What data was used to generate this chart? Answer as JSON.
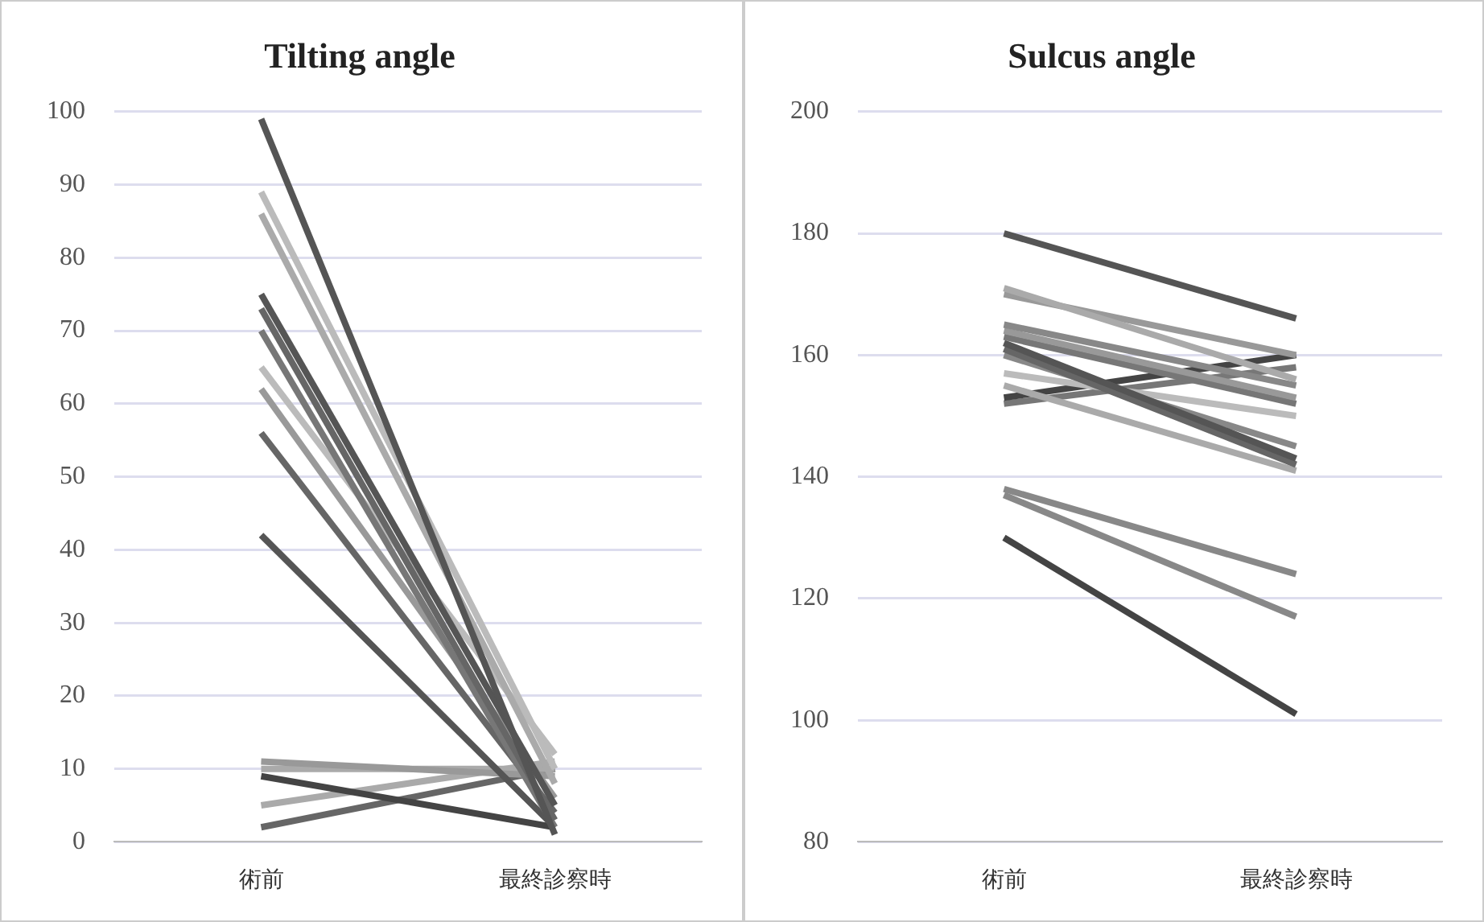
{
  "chart_data": [
    {
      "type": "line",
      "title": "Tilting angle",
      "categories": [
        "術前",
        "最終診察時"
      ],
      "ylim": [
        0,
        100
      ],
      "yticks": [
        0,
        10,
        20,
        30,
        40,
        50,
        60,
        70,
        80,
        90,
        100
      ],
      "grid": "y",
      "legend": false,
      "marker": "none",
      "series": [
        {
          "color": "#555555",
          "values": [
            99,
            1
          ]
        },
        {
          "color": "#bbbbbb",
          "values": [
            89,
            10
          ]
        },
        {
          "color": "#aaaaaa",
          "values": [
            86,
            8
          ]
        },
        {
          "color": "#555555",
          "values": [
            75,
            5
          ]
        },
        {
          "color": "#666666",
          "values": [
            73,
            3
          ]
        },
        {
          "color": "#777777",
          "values": [
            70,
            2
          ]
        },
        {
          "color": "#bbbbbb",
          "values": [
            65,
            12
          ]
        },
        {
          "color": "#999999",
          "values": [
            62,
            6
          ]
        },
        {
          "color": "#666666",
          "values": [
            56,
            4
          ]
        },
        {
          "color": "#555555",
          "values": [
            42,
            2
          ]
        },
        {
          "color": "#999999",
          "values": [
            11,
            9
          ]
        },
        {
          "color": "#aaaaaa",
          "values": [
            10,
            10
          ]
        },
        {
          "color": "#444444",
          "values": [
            9,
            2
          ]
        },
        {
          "color": "#aaaaaa",
          "values": [
            5,
            11
          ]
        },
        {
          "color": "#666666",
          "values": [
            2,
            10
          ]
        }
      ]
    },
    {
      "type": "line",
      "title": "Sulcus angle",
      "categories": [
        "術前",
        "最終診察時"
      ],
      "ylim": [
        80,
        200
      ],
      "yticks": [
        80,
        100,
        120,
        140,
        160,
        180,
        200
      ],
      "grid": "y",
      "legend": false,
      "marker": "none",
      "series": [
        {
          "color": "#555555",
          "values": [
            180,
            166
          ]
        },
        {
          "color": "#aaaaaa",
          "values": [
            171,
            156
          ]
        },
        {
          "color": "#999999",
          "values": [
            170,
            160
          ]
        },
        {
          "color": "#888888",
          "values": [
            165,
            155
          ]
        },
        {
          "color": "#999999",
          "values": [
            164,
            153
          ]
        },
        {
          "color": "#777777",
          "values": [
            163,
            152
          ]
        },
        {
          "color": "#555555",
          "values": [
            162,
            143
          ]
        },
        {
          "color": "#666666",
          "values": [
            161,
            142
          ]
        },
        {
          "color": "#888888",
          "values": [
            160,
            145
          ]
        },
        {
          "color": "#bbbbbb",
          "values": [
            157,
            150
          ]
        },
        {
          "color": "#aaaaaa",
          "values": [
            155,
            141
          ]
        },
        {
          "color": "#444444",
          "values": [
            153,
            160
          ]
        },
        {
          "color": "#777777",
          "values": [
            152,
            158
          ]
        },
        {
          "color": "#888888",
          "values": [
            138,
            124
          ]
        },
        {
          "color": "#888888",
          "values": [
            137,
            117
          ]
        },
        {
          "color": "#444444",
          "values": [
            130,
            101
          ]
        }
      ]
    }
  ]
}
